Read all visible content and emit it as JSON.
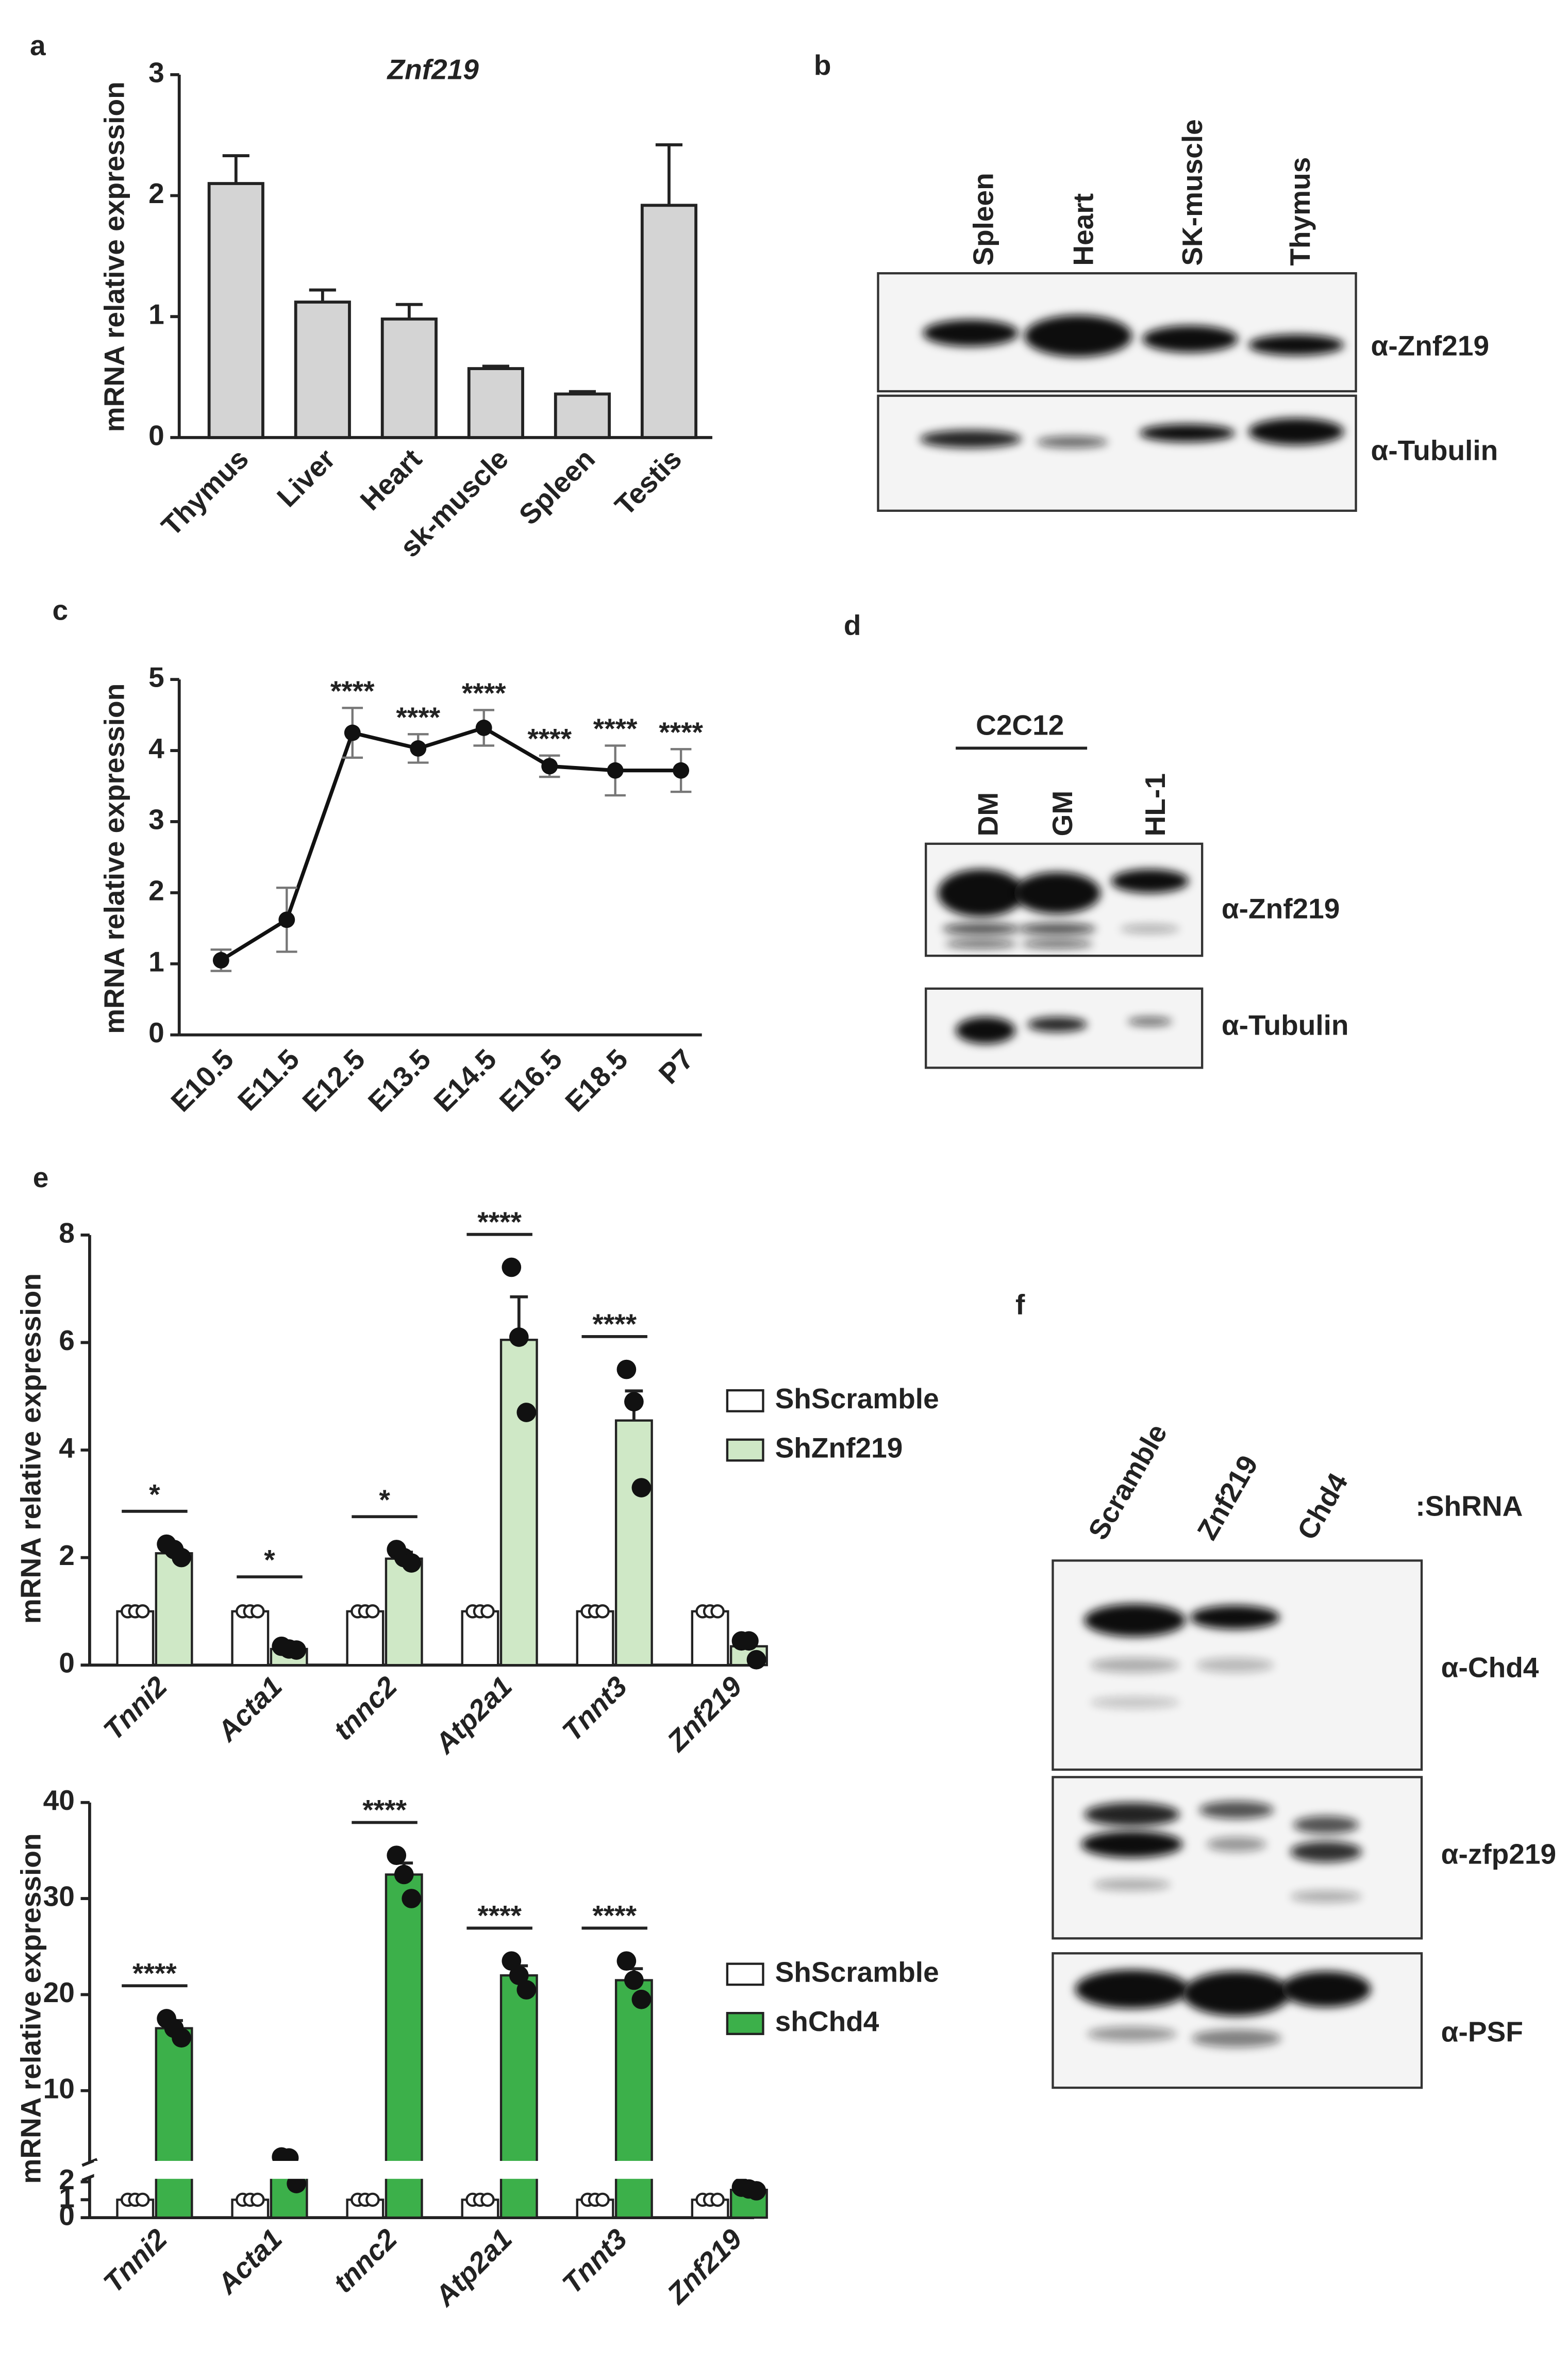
{
  "panel_labels": [
    "a",
    "b",
    "c",
    "d",
    "e",
    "f"
  ],
  "chart_data": [
    {
      "type": "bar",
      "title": "Znf219",
      "ylabel": "mRNA relative expression",
      "categories": [
        "Thymus",
        "Liver",
        "Heart",
        "sk-muscle",
        "Spleen",
        "Testis"
      ],
      "values": [
        2.1,
        1.12,
        0.98,
        0.57,
        0.36,
        1.92
      ],
      "errors": [
        0.23,
        0.1,
        0.12,
        0.02,
        0.02,
        0.5
      ],
      "color": "#d4d4d4",
      "ylim": [
        0,
        3
      ],
      "yticks": [
        0,
        1,
        2,
        3
      ]
    },
    {
      "type": "line",
      "ylabel": "mRNA relative expression",
      "categories": [
        "E10.5",
        "E11.5",
        "E12.5",
        "E13.5",
        "E14.5",
        "E16.5",
        "E18.5",
        "P7"
      ],
      "values": [
        1.05,
        1.62,
        4.25,
        4.03,
        4.32,
        3.78,
        3.72,
        3.72
      ],
      "errors": [
        0.15,
        0.45,
        0.35,
        0.2,
        0.25,
        0.15,
        0.35,
        0.3
      ],
      "annotations": [
        null,
        null,
        "****",
        "****",
        "****",
        "****",
        "****",
        "****"
      ],
      "color": "#111111",
      "ylim": [
        0,
        5
      ],
      "yticks": [
        0,
        1,
        2,
        3,
        4,
        5
      ]
    },
    {
      "type": "grouped-bar",
      "ylabel": "mRNA relative expression",
      "categories": [
        "Tnni2",
        "Acta1",
        "tnnc2",
        "Atp2a1",
        "Tnnt3",
        "Znf219"
      ],
      "series": [
        {
          "name": "ShScramble",
          "color": "#ffffff",
          "values": [
            1,
            1,
            1,
            1,
            1,
            1
          ],
          "errors": [
            0.03,
            0.03,
            0.03,
            0.03,
            0.03,
            0.03
          ],
          "points": [
            [
              1,
              1,
              1
            ],
            [
              1,
              1,
              1
            ],
            [
              1,
              1,
              1
            ],
            [
              1,
              1,
              1
            ],
            [
              1,
              1,
              1
            ],
            [
              1,
              1,
              1
            ]
          ]
        },
        {
          "name": "ShZnf219",
          "color": "#cfe8c6",
          "values": [
            2.08,
            0.3,
            1.98,
            6.05,
            4.55,
            0.35
          ],
          "errors": [
            0.1,
            0.05,
            0.12,
            0.8,
            0.55,
            0.1
          ],
          "points": [
            [
              2.25,
              2.15,
              2.0
            ],
            [
              0.35,
              0.3,
              0.28
            ],
            [
              2.15,
              2.0,
              1.9
            ],
            [
              7.4,
              6.1,
              4.7
            ],
            [
              5.5,
              4.9,
              3.3
            ],
            [
              0.45,
              0.45,
              0.1
            ]
          ]
        }
      ],
      "annotations": [
        "*",
        "*",
        "*",
        "****",
        "****",
        null
      ],
      "ylim": [
        0,
        8
      ],
      "yticks": [
        0,
        2,
        4,
        6,
        8
      ]
    },
    {
      "type": "grouped-bar",
      "ylabel": "mRNA relative expression",
      "categories": [
        "Tnni2",
        "Acta1",
        "tnnc2",
        "Atp2a1",
        "Tnnt3",
        "Znf219"
      ],
      "series": [
        {
          "name": "ShScramble",
          "color": "#ffffff",
          "values": [
            1,
            1,
            1,
            1,
            1,
            1
          ],
          "errors": [
            0.03,
            0.03,
            0.03,
            0.03,
            0.03,
            0.03
          ],
          "points": [
            [
              1,
              1,
              1
            ],
            [
              1,
              1,
              1
            ],
            [
              1,
              1,
              1
            ],
            [
              1,
              1,
              1
            ],
            [
              1,
              1,
              1
            ],
            [
              1,
              1,
              1
            ]
          ]
        },
        {
          "name": "shChd4",
          "color": "#3cb04a",
          "values": [
            16.5,
            2.6,
            32.5,
            22,
            21.5,
            1.55
          ],
          "errors": [
            0.8,
            0.5,
            1.2,
            1,
            1.2,
            0.1
          ],
          "points": [
            [
              17.5,
              16.5,
              15.5
            ],
            [
              3.1,
              3.0,
              1.9
            ],
            [
              34.5,
              32.5,
              30
            ],
            [
              23.5,
              22,
              20.5
            ],
            [
              23.5,
              21.5,
              19.5
            ],
            [
              1.7,
              1.6,
              1.5
            ]
          ]
        }
      ],
      "annotations": [
        "****",
        null,
        "****",
        "****",
        "****",
        null
      ],
      "ylim": [
        0,
        40
      ],
      "ybreak": [
        2,
        3
      ],
      "yticks": [
        0,
        1,
        2,
        10,
        20,
        30,
        40
      ]
    }
  ],
  "blots": [
    {
      "lanes": [
        "Spleen",
        "Heart",
        "SK-muscle",
        "Thymus"
      ],
      "rows": [
        "α-Znf219",
        "α-Tubulin"
      ]
    },
    {
      "group": "C2C12",
      "lanes": [
        "DM",
        "GM",
        "HL-1"
      ],
      "rows": [
        "α-Znf219",
        "α-Tubulin"
      ]
    },
    {
      "lanes": [
        "Scramble",
        "Znf219",
        "Chd4"
      ],
      "lane_note": ":ShRNA",
      "rows": [
        "α-Chd4",
        "α-zfp219",
        "α-PSF"
      ]
    }
  ]
}
